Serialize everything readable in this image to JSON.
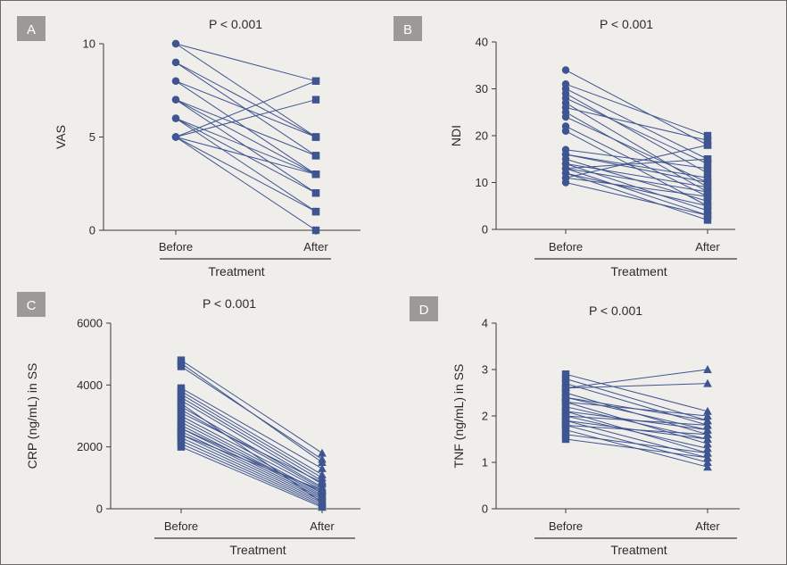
{
  "colors": {
    "marker": "#3f5591",
    "axis": "#3a3a3a",
    "badge": "#9c9a98",
    "background": "#efeeea"
  },
  "chart_data": [
    {
      "panel": "A",
      "type": "line",
      "title": "P < 0.001",
      "xlabel": "Treatment",
      "ylabel": "VAS",
      "categories": [
        "Before",
        "After"
      ],
      "ylim": [
        0,
        10
      ],
      "yticks": [
        0,
        5,
        10
      ],
      "before_marker": "circle",
      "after_marker": "square",
      "pairs": [
        [
          10,
          8
        ],
        [
          10,
          5
        ],
        [
          9,
          5
        ],
        [
          9,
          4
        ],
        [
          8,
          5
        ],
        [
          8,
          3
        ],
        [
          7,
          3
        ],
        [
          7,
          4
        ],
        [
          7,
          2
        ],
        [
          6,
          3
        ],
        [
          6,
          1
        ],
        [
          6,
          2
        ],
        [
          5,
          8
        ],
        [
          5,
          7
        ],
        [
          5,
          0
        ],
        [
          5,
          1
        ],
        [
          5,
          3
        ]
      ]
    },
    {
      "panel": "B",
      "type": "line",
      "title": "P < 0.001",
      "xlabel": "Treatment",
      "ylabel": "NDI",
      "categories": [
        "Before",
        "After"
      ],
      "ylim": [
        0,
        40
      ],
      "yticks": [
        0,
        10,
        20,
        30,
        40
      ],
      "before_marker": "circle",
      "after_marker": "square",
      "pairs": [
        [
          34,
          18
        ],
        [
          31,
          20
        ],
        [
          30,
          15
        ],
        [
          29,
          12
        ],
        [
          28,
          14
        ],
        [
          27,
          9
        ],
        [
          26,
          19
        ],
        [
          25,
          8
        ],
        [
          24,
          10
        ],
        [
          22,
          7
        ],
        [
          21,
          5
        ],
        [
          17,
          13
        ],
        [
          16,
          11
        ],
        [
          15,
          6
        ],
        [
          14,
          4
        ],
        [
          14,
          9
        ],
        [
          13,
          15
        ],
        [
          13,
          3
        ],
        [
          12,
          5
        ],
        [
          12,
          2
        ],
        [
          11,
          7
        ],
        [
          11,
          18
        ],
        [
          10,
          3
        ],
        [
          16,
          10
        ],
        [
          13,
          8
        ]
      ]
    },
    {
      "panel": "C",
      "type": "line",
      "title": "P < 0.001",
      "xlabel": "Treatment",
      "ylabel": "CRP (ng/mL) in SS",
      "categories": [
        "Before",
        "After"
      ],
      "ylim": [
        0,
        6000
      ],
      "yticks": [
        0,
        2000,
        4000,
        6000
      ],
      "before_marker": "square",
      "after_marker": "triangle",
      "pairs": [
        [
          4800,
          1800
        ],
        [
          4700,
          1500
        ],
        [
          4600,
          1600
        ],
        [
          3900,
          1300
        ],
        [
          3800,
          1100
        ],
        [
          3700,
          1000
        ],
        [
          3600,
          900
        ],
        [
          3500,
          800
        ],
        [
          3300,
          700
        ],
        [
          3200,
          650
        ],
        [
          3000,
          600
        ],
        [
          2900,
          500
        ],
        [
          2800,
          450
        ],
        [
          2700,
          400
        ],
        [
          2600,
          350
        ],
        [
          2500,
          300
        ],
        [
          2400,
          250
        ],
        [
          2300,
          200
        ],
        [
          2200,
          150
        ],
        [
          2100,
          100
        ],
        [
          2000,
          50
        ],
        [
          2600,
          550
        ],
        [
          3100,
          850
        ],
        [
          2400,
          600
        ],
        [
          3400,
          200
        ]
      ]
    },
    {
      "panel": "D",
      "type": "line",
      "title": "P < 0.001",
      "xlabel": "Treatment",
      "ylabel": "TNF (ng/mL) in SS",
      "categories": [
        "Before",
        "After"
      ],
      "ylim": [
        0,
        4
      ],
      "yticks": [
        0,
        1,
        2,
        3,
        4
      ],
      "before_marker": "square",
      "after_marker": "triangle",
      "pairs": [
        [
          2.9,
          2.1
        ],
        [
          2.8,
          1.9
        ],
        [
          2.7,
          1.8
        ],
        [
          2.6,
          3.0
        ],
        [
          2.6,
          2.7
        ],
        [
          2.5,
          1.6
        ],
        [
          2.4,
          1.7
        ],
        [
          2.3,
          1.4
        ],
        [
          2.3,
          2.0
        ],
        [
          2.2,
          1.5
        ],
        [
          2.1,
          1.2
        ],
        [
          2.0,
          1.8
        ],
        [
          2.0,
          1.3
        ],
        [
          1.9,
          1.1
        ],
        [
          1.8,
          1.0
        ],
        [
          1.8,
          1.6
        ],
        [
          1.7,
          0.9
        ],
        [
          1.6,
          1.2
        ],
        [
          1.5,
          1.1
        ],
        [
          2.4,
          1.9
        ],
        [
          2.1,
          1.7
        ],
        [
          1.9,
          1.5
        ]
      ]
    }
  ]
}
